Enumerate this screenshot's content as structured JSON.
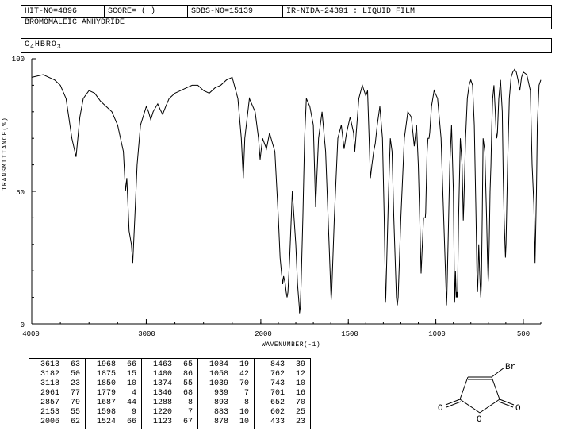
{
  "header": {
    "hit_no": "HIT-NO=4896",
    "score": "SCORE=  (   )",
    "sdbs_no": "SDBS-NO=15139",
    "method": "IR-NIDA-24391 : LIQUID FILM"
  },
  "compound_name": "BROMOMALEIC ANHYDRIDE",
  "formula_parts": [
    "C",
    "4",
    "HBRO",
    "3"
  ],
  "chart": {
    "type": "line",
    "xlabel": "WAVENUMBER(-1)",
    "ylabel": "TRANSMITTANCE(%)",
    "xlim": [
      4000,
      400
    ],
    "ylim": [
      0,
      100
    ],
    "xticks": [
      4000,
      3000,
      2000,
      1500,
      1000,
      500
    ],
    "yticks": [
      0,
      50,
      100
    ],
    "line_color": "#000000",
    "background_color": "#ffffff",
    "axis_color": "#000000",
    "label_fontsize": 8,
    "tick_fontsize": 9,
    "minor_xticks_hi": 250,
    "minor_xticks_lo": 100,
    "spectrum": [
      [
        4000,
        93
      ],
      [
        3900,
        94
      ],
      [
        3850,
        93
      ],
      [
        3800,
        92
      ],
      [
        3750,
        90
      ],
      [
        3700,
        85
      ],
      [
        3650,
        70
      ],
      [
        3613,
        63
      ],
      [
        3580,
        78
      ],
      [
        3550,
        85
      ],
      [
        3500,
        88
      ],
      [
        3450,
        87
      ],
      [
        3400,
        84
      ],
      [
        3350,
        82
      ],
      [
        3300,
        80
      ],
      [
        3250,
        75
      ],
      [
        3200,
        65
      ],
      [
        3182,
        50
      ],
      [
        3170,
        55
      ],
      [
        3150,
        35
      ],
      [
        3130,
        30
      ],
      [
        3118,
        23
      ],
      [
        3100,
        40
      ],
      [
        3080,
        60
      ],
      [
        3050,
        75
      ],
      [
        3000,
        82
      ],
      [
        2980,
        80
      ],
      [
        2961,
        77
      ],
      [
        2940,
        80
      ],
      [
        2900,
        83
      ],
      [
        2880,
        81
      ],
      [
        2857,
        79
      ],
      [
        2830,
        82
      ],
      [
        2800,
        85
      ],
      [
        2750,
        87
      ],
      [
        2700,
        88
      ],
      [
        2650,
        89
      ],
      [
        2600,
        90
      ],
      [
        2550,
        90
      ],
      [
        2500,
        88
      ],
      [
        2450,
        87
      ],
      [
        2400,
        89
      ],
      [
        2350,
        90
      ],
      [
        2300,
        92
      ],
      [
        2250,
        93
      ],
      [
        2200,
        85
      ],
      [
        2170,
        70
      ],
      [
        2153,
        55
      ],
      [
        2140,
        70
      ],
      [
        2100,
        85
      ],
      [
        2050,
        80
      ],
      [
        2020,
        70
      ],
      [
        2006,
        62
      ],
      [
        1990,
        70
      ],
      [
        1968,
        66
      ],
      [
        1950,
        72
      ],
      [
        1920,
        65
      ],
      [
        1900,
        40
      ],
      [
        1890,
        25
      ],
      [
        1880,
        18
      ],
      [
        1875,
        15
      ],
      [
        1870,
        18
      ],
      [
        1860,
        15
      ],
      [
        1855,
        12
      ],
      [
        1850,
        10
      ],
      [
        1845,
        12
      ],
      [
        1835,
        25
      ],
      [
        1820,
        50
      ],
      [
        1800,
        30
      ],
      [
        1790,
        15
      ],
      [
        1780,
        6
      ],
      [
        1779,
        4
      ],
      [
        1775,
        6
      ],
      [
        1770,
        15
      ],
      [
        1760,
        40
      ],
      [
        1750,
        70
      ],
      [
        1740,
        85
      ],
      [
        1720,
        82
      ],
      [
        1700,
        75
      ],
      [
        1687,
        44
      ],
      [
        1680,
        55
      ],
      [
        1670,
        70
      ],
      [
        1650,
        80
      ],
      [
        1630,
        65
      ],
      [
        1610,
        30
      ],
      [
        1600,
        12
      ],
      [
        1598,
        9
      ],
      [
        1595,
        12
      ],
      [
        1580,
        40
      ],
      [
        1560,
        70
      ],
      [
        1540,
        75
      ],
      [
        1524,
        66
      ],
      [
        1510,
        72
      ],
      [
        1490,
        78
      ],
      [
        1470,
        72
      ],
      [
        1463,
        65
      ],
      [
        1455,
        72
      ],
      [
        1440,
        85
      ],
      [
        1420,
        90
      ],
      [
        1410,
        88
      ],
      [
        1400,
        86
      ],
      [
        1390,
        88
      ],
      [
        1374,
        55
      ],
      [
        1365,
        60
      ],
      [
        1355,
        65
      ],
      [
        1346,
        68
      ],
      [
        1335,
        75
      ],
      [
        1320,
        82
      ],
      [
        1305,
        70
      ],
      [
        1295,
        40
      ],
      [
        1290,
        20
      ],
      [
        1288,
        8
      ],
      [
        1286,
        10
      ],
      [
        1280,
        25
      ],
      [
        1270,
        50
      ],
      [
        1260,
        70
      ],
      [
        1250,
        65
      ],
      [
        1240,
        40
      ],
      [
        1230,
        20
      ],
      [
        1225,
        10
      ],
      [
        1220,
        7
      ],
      [
        1215,
        10
      ],
      [
        1200,
        40
      ],
      [
        1180,
        70
      ],
      [
        1160,
        80
      ],
      [
        1140,
        78
      ],
      [
        1123,
        67
      ],
      [
        1110,
        75
      ],
      [
        1100,
        60
      ],
      [
        1090,
        35
      ],
      [
        1084,
        19
      ],
      [
        1080,
        25
      ],
      [
        1070,
        40
      ],
      [
        1060,
        40
      ],
      [
        1058,
        42
      ],
      [
        1055,
        50
      ],
      [
        1050,
        65
      ],
      [
        1045,
        70
      ],
      [
        1039,
        70
      ],
      [
        1035,
        72
      ],
      [
        1025,
        82
      ],
      [
        1010,
        88
      ],
      [
        990,
        85
      ],
      [
        970,
        70
      ],
      [
        955,
        40
      ],
      [
        945,
        20
      ],
      [
        940,
        10
      ],
      [
        939,
        7
      ],
      [
        937,
        10
      ],
      [
        930,
        30
      ],
      [
        920,
        60
      ],
      [
        910,
        75
      ],
      [
        900,
        50
      ],
      [
        895,
        20
      ],
      [
        893,
        8
      ],
      [
        891,
        10
      ],
      [
        888,
        20
      ],
      [
        883,
        10
      ],
      [
        880,
        12
      ],
      [
        878,
        10
      ],
      [
        876,
        12
      ],
      [
        870,
        40
      ],
      [
        860,
        70
      ],
      [
        850,
        60
      ],
      [
        845,
        45
      ],
      [
        843,
        39
      ],
      [
        840,
        45
      ],
      [
        830,
        70
      ],
      [
        820,
        85
      ],
      [
        810,
        90
      ],
      [
        800,
        92
      ],
      [
        790,
        90
      ],
      [
        780,
        75
      ],
      [
        770,
        40
      ],
      [
        765,
        20
      ],
      [
        762,
        12
      ],
      [
        760,
        15
      ],
      [
        755,
        30
      ],
      [
        750,
        20
      ],
      [
        745,
        12
      ],
      [
        743,
        10
      ],
      [
        740,
        15
      ],
      [
        735,
        40
      ],
      [
        730,
        70
      ],
      [
        720,
        65
      ],
      [
        710,
        40
      ],
      [
        705,
        25
      ],
      [
        702,
        18
      ],
      [
        701,
        16
      ],
      [
        699,
        18
      ],
      [
        695,
        30
      ],
      [
        690,
        50
      ],
      [
        685,
        60
      ],
      [
        680,
        75
      ],
      [
        675,
        85
      ],
      [
        668,
        90
      ],
      [
        660,
        80
      ],
      [
        655,
        72
      ],
      [
        652,
        70
      ],
      [
        648,
        72
      ],
      [
        640,
        85
      ],
      [
        630,
        92
      ],
      [
        620,
        80
      ],
      [
        615,
        55
      ],
      [
        610,
        40
      ],
      [
        605,
        30
      ],
      [
        602,
        25
      ],
      [
        599,
        30
      ],
      [
        590,
        60
      ],
      [
        580,
        85
      ],
      [
        570,
        93
      ],
      [
        560,
        95
      ],
      [
        550,
        96
      ],
      [
        540,
        95
      ],
      [
        530,
        92
      ],
      [
        520,
        88
      ],
      [
        510,
        93
      ],
      [
        500,
        95
      ],
      [
        480,
        94
      ],
      [
        460,
        88
      ],
      [
        450,
        60
      ],
      [
        440,
        45
      ],
      [
        435,
        30
      ],
      [
        433,
        23
      ],
      [
        431,
        30
      ],
      [
        425,
        50
      ],
      [
        420,
        75
      ],
      [
        410,
        90
      ],
      [
        400,
        92
      ]
    ]
  },
  "peak_table": {
    "columns": [
      [
        [
          3613,
          63
        ],
        [
          3182,
          50
        ],
        [
          3118,
          23
        ],
        [
          2961,
          77
        ],
        [
          2857,
          79
        ],
        [
          2153,
          55
        ],
        [
          2006,
          62
        ]
      ],
      [
        [
          1968,
          66
        ],
        [
          1875,
          15
        ],
        [
          1850,
          10
        ],
        [
          1779,
          4
        ],
        [
          1687,
          44
        ],
        [
          1598,
          9
        ],
        [
          1524,
          66
        ]
      ],
      [
        [
          1463,
          65
        ],
        [
          1400,
          86
        ],
        [
          1374,
          55
        ],
        [
          1346,
          68
        ],
        [
          1288,
          8
        ],
        [
          1220,
          7
        ],
        [
          1123,
          67
        ]
      ],
      [
        [
          1084,
          19
        ],
        [
          1058,
          42
        ],
        [
          1039,
          70
        ],
        [
          939,
          7
        ],
        [
          893,
          8
        ],
        [
          883,
          10
        ],
        [
          878,
          10
        ]
      ],
      [
        [
          843,
          39
        ],
        [
          762,
          12
        ],
        [
          743,
          10
        ],
        [
          701,
          16
        ],
        [
          652,
          70
        ],
        [
          602,
          25
        ],
        [
          433,
          23
        ]
      ]
    ],
    "fontsize": 10
  },
  "molecule": {
    "label_br": "Br",
    "label_o1": "O",
    "label_o2": "O",
    "label_o3": "O",
    "line_color": "#000000"
  },
  "header_widths": {
    "hit": 105,
    "score": 105,
    "sdbs": 120,
    "method": 338
  }
}
